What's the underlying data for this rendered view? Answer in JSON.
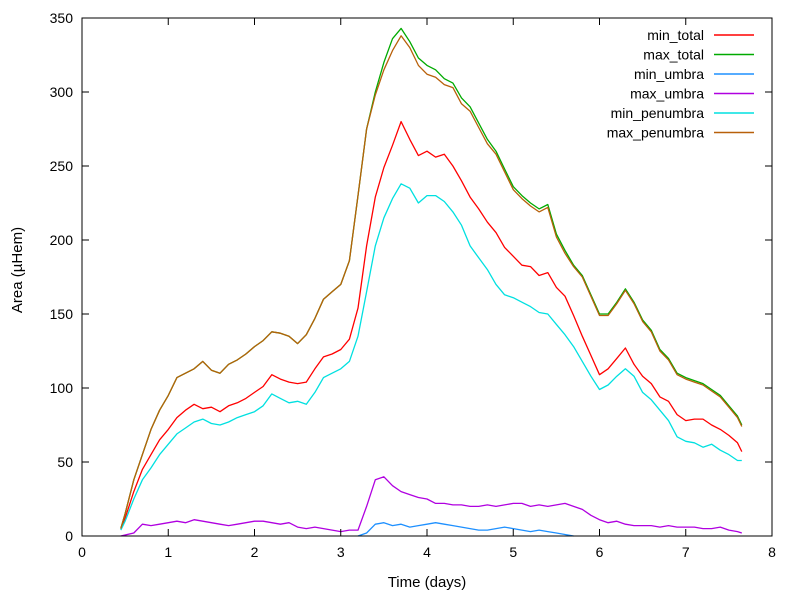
{
  "chart_data": {
    "type": "line",
    "title": "",
    "xlabel": "Time (days)",
    "ylabel": "Area (µHem)",
    "xlim": [
      0,
      8
    ],
    "ylim": [
      0,
      350
    ],
    "xticks": [
      0,
      1,
      2,
      3,
      4,
      5,
      6,
      7,
      8
    ],
    "yticks": [
      0,
      50,
      100,
      150,
      200,
      250,
      300,
      350
    ],
    "xtick_labels": [
      "0",
      "1",
      "2",
      "3",
      "4",
      "5",
      "6",
      "7",
      "8"
    ],
    "ytick_labels": [
      "0",
      "50",
      "100",
      "150",
      "200",
      "250",
      "300",
      "350"
    ],
    "grid": false,
    "legend_position": "top-right",
    "series": [
      {
        "name": "min_total",
        "color": "#ff0000",
        "x": [
          0.45,
          0.5,
          0.6,
          0.7,
          0.8,
          0.9,
          1.0,
          1.1,
          1.2,
          1.3,
          1.4,
          1.5,
          1.6,
          1.7,
          1.8,
          1.9,
          2.0,
          2.1,
          2.2,
          2.3,
          2.4,
          2.5,
          2.6,
          2.7,
          2.8,
          2.9,
          3.0,
          3.1,
          3.2,
          3.3,
          3.4,
          3.5,
          3.6,
          3.7,
          3.8,
          3.9,
          4.0,
          4.1,
          4.2,
          4.3,
          4.4,
          4.5,
          4.6,
          4.7,
          4.8,
          4.9,
          5.0,
          5.1,
          5.2,
          5.3,
          5.4,
          5.5,
          5.6,
          5.7,
          5.8,
          5.9,
          6.0,
          6.1,
          6.2,
          6.3,
          6.4,
          6.5,
          6.6,
          6.7,
          6.8,
          6.9,
          7.0,
          7.1,
          7.2,
          7.3,
          7.4,
          7.5,
          7.6,
          7.65
        ],
        "y": [
          5,
          12,
          30,
          45,
          55,
          65,
          72,
          80,
          85,
          89,
          86,
          87,
          84,
          88,
          90,
          93,
          97,
          101,
          109,
          106,
          104,
          103,
          104,
          113,
          121,
          123,
          126,
          133,
          154,
          196,
          229,
          249,
          264,
          280,
          268,
          257,
          260,
          256,
          258,
          250,
          240,
          229,
          221,
          212,
          205,
          195,
          189,
          183,
          182,
          176,
          178,
          168,
          162,
          149,
          135,
          122,
          109,
          113,
          120,
          127,
          116,
          108,
          103,
          94,
          91,
          82,
          78,
          79,
          79,
          75,
          72,
          68,
          63,
          57
        ]
      },
      {
        "name": "max_total",
        "color": "#00aa00",
        "x": [
          0.45,
          0.5,
          0.6,
          0.7,
          0.8,
          0.9,
          1.0,
          1.1,
          1.2,
          1.3,
          1.4,
          1.5,
          1.6,
          1.7,
          1.8,
          1.9,
          2.0,
          2.1,
          2.2,
          2.3,
          2.4,
          2.5,
          2.6,
          2.7,
          2.8,
          2.9,
          3.0,
          3.1,
          3.2,
          3.3,
          3.4,
          3.5,
          3.6,
          3.7,
          3.8,
          3.9,
          4.0,
          4.1,
          4.2,
          4.3,
          4.4,
          4.5,
          4.6,
          4.7,
          4.8,
          4.9,
          5.0,
          5.1,
          5.2,
          5.3,
          5.4,
          5.5,
          5.6,
          5.7,
          5.8,
          5.9,
          6.0,
          6.1,
          6.2,
          6.3,
          6.4,
          6.5,
          6.6,
          6.7,
          6.8,
          6.9,
          7.0,
          7.1,
          7.2,
          7.3,
          7.4,
          7.5,
          7.6,
          7.65
        ],
        "y": [
          5,
          15,
          38,
          55,
          72,
          85,
          95,
          107,
          110,
          113,
          118,
          112,
          110,
          116,
          119,
          123,
          128,
          132,
          138,
          137,
          135,
          130,
          136,
          147,
          160,
          165,
          170,
          186,
          230,
          275,
          300,
          320,
          336,
          343,
          334,
          323,
          318,
          315,
          309,
          306,
          296,
          290,
          279,
          268,
          260,
          248,
          236,
          230,
          225,
          221,
          224,
          204,
          193,
          183,
          176,
          163,
          150,
          150,
          158,
          167,
          158,
          146,
          139,
          126,
          120,
          110,
          107,
          105,
          103,
          99,
          95,
          88,
          81,
          75
        ]
      },
      {
        "name": "min_umbra",
        "color": "#1e90ff",
        "x": [
          3.2,
          3.3,
          3.4,
          3.5,
          3.6,
          3.7,
          3.8,
          3.9,
          4.0,
          4.1,
          4.2,
          4.3,
          4.4,
          4.5,
          4.6,
          4.7,
          4.8,
          4.9,
          5.0,
          5.1,
          5.2,
          5.3,
          5.4,
          5.5,
          5.6,
          5.7
        ],
        "y": [
          0,
          2,
          8,
          9,
          7,
          8,
          6,
          7,
          8,
          9,
          8,
          7,
          6,
          5,
          4,
          4,
          5,
          6,
          5,
          4,
          3,
          4,
          3,
          2,
          1,
          0
        ]
      },
      {
        "name": "max_umbra",
        "color": "#b000e0",
        "x": [
          0.45,
          0.6,
          0.7,
          0.8,
          0.9,
          1.0,
          1.1,
          1.2,
          1.3,
          1.4,
          1.5,
          1.6,
          1.7,
          1.8,
          1.9,
          2.0,
          2.1,
          2.2,
          2.3,
          2.4,
          2.5,
          2.6,
          2.7,
          2.8,
          2.9,
          3.0,
          3.1,
          3.2,
          3.3,
          3.4,
          3.5,
          3.6,
          3.7,
          3.8,
          3.9,
          4.0,
          4.1,
          4.2,
          4.3,
          4.4,
          4.5,
          4.6,
          4.7,
          4.8,
          4.9,
          5.0,
          5.1,
          5.2,
          5.3,
          5.4,
          5.5,
          5.6,
          5.7,
          5.8,
          5.9,
          6.0,
          6.1,
          6.2,
          6.3,
          6.4,
          6.5,
          6.6,
          6.7,
          6.8,
          6.9,
          7.0,
          7.1,
          7.2,
          7.3,
          7.4,
          7.5,
          7.6,
          7.65
        ],
        "y": [
          0,
          2,
          8,
          7,
          8,
          9,
          10,
          9,
          11,
          10,
          9,
          8,
          7,
          8,
          9,
          10,
          10,
          9,
          8,
          9,
          6,
          5,
          6,
          5,
          4,
          3,
          4,
          4,
          20,
          38,
          40,
          34,
          30,
          28,
          26,
          25,
          22,
          22,
          21,
          21,
          20,
          20,
          21,
          20,
          21,
          22,
          22,
          20,
          21,
          20,
          21,
          22,
          20,
          18,
          14,
          11,
          9,
          10,
          8,
          7,
          7,
          7,
          6,
          7,
          6,
          6,
          6,
          5,
          5,
          6,
          4,
          3,
          2
        ]
      },
      {
        "name": "min_penumbra",
        "color": "#00e0e0",
        "x": [
          0.45,
          0.5,
          0.6,
          0.7,
          0.8,
          0.9,
          1.0,
          1.1,
          1.2,
          1.3,
          1.4,
          1.5,
          1.6,
          1.7,
          1.8,
          1.9,
          2.0,
          2.1,
          2.2,
          2.3,
          2.4,
          2.5,
          2.6,
          2.7,
          2.8,
          2.9,
          3.0,
          3.1,
          3.2,
          3.3,
          3.4,
          3.5,
          3.6,
          3.7,
          3.8,
          3.9,
          4.0,
          4.1,
          4.2,
          4.3,
          4.4,
          4.5,
          4.6,
          4.7,
          4.8,
          4.9,
          5.0,
          5.1,
          5.2,
          5.3,
          5.4,
          5.5,
          5.6,
          5.7,
          5.8,
          5.9,
          6.0,
          6.1,
          6.2,
          6.3,
          6.4,
          6.5,
          6.6,
          6.7,
          6.8,
          6.9,
          7.0,
          7.1,
          7.2,
          7.3,
          7.4,
          7.5,
          7.6,
          7.65
        ],
        "y": [
          4,
          10,
          25,
          38,
          46,
          55,
          62,
          69,
          73,
          77,
          79,
          76,
          75,
          77,
          80,
          82,
          84,
          88,
          96,
          93,
          90,
          91,
          89,
          97,
          107,
          110,
          113,
          118,
          135,
          165,
          196,
          215,
          228,
          238,
          235,
          225,
          230,
          230,
          226,
          219,
          210,
          196,
          188,
          180,
          170,
          163,
          161,
          158,
          155,
          151,
          150,
          143,
          136,
          128,
          118,
          108,
          99,
          102,
          108,
          113,
          108,
          97,
          92,
          85,
          78,
          67,
          64,
          63,
          60,
          62,
          58,
          55,
          51,
          51
        ]
      },
      {
        "name": "max_penumbra",
        "color": "#b8600a",
        "x": [
          0.45,
          0.5,
          0.6,
          0.7,
          0.8,
          0.9,
          1.0,
          1.1,
          1.2,
          1.3,
          1.4,
          1.5,
          1.6,
          1.7,
          1.8,
          1.9,
          2.0,
          2.1,
          2.2,
          2.3,
          2.4,
          2.5,
          2.6,
          2.7,
          2.8,
          2.9,
          3.0,
          3.1,
          3.2,
          3.3,
          3.4,
          3.5,
          3.6,
          3.7,
          3.8,
          3.9,
          4.0,
          4.1,
          4.2,
          4.3,
          4.4,
          4.5,
          4.6,
          4.7,
          4.8,
          4.9,
          5.0,
          5.1,
          5.2,
          5.3,
          5.4,
          5.5,
          5.6,
          5.7,
          5.8,
          5.9,
          6.0,
          6.1,
          6.2,
          6.3,
          6.4,
          6.5,
          6.6,
          6.7,
          6.8,
          6.9,
          7.0,
          7.1,
          7.2,
          7.3,
          7.4,
          7.5,
          7.6,
          7.65
        ],
        "y": [
          5,
          15,
          38,
          55,
          72,
          85,
          95,
          107,
          110,
          113,
          118,
          112,
          110,
          116,
          119,
          123,
          128,
          132,
          138,
          137,
          135,
          130,
          136,
          147,
          160,
          165,
          170,
          186,
          230,
          275,
          298,
          315,
          328,
          338,
          330,
          318,
          312,
          310,
          305,
          303,
          292,
          287,
          276,
          265,
          258,
          246,
          234,
          228,
          223,
          219,
          222,
          202,
          191,
          182,
          175,
          162,
          149,
          149,
          157,
          166,
          157,
          145,
          138,
          125,
          119,
          109,
          106,
          104,
          102,
          98,
          94,
          87,
          80,
          74
        ]
      }
    ]
  }
}
